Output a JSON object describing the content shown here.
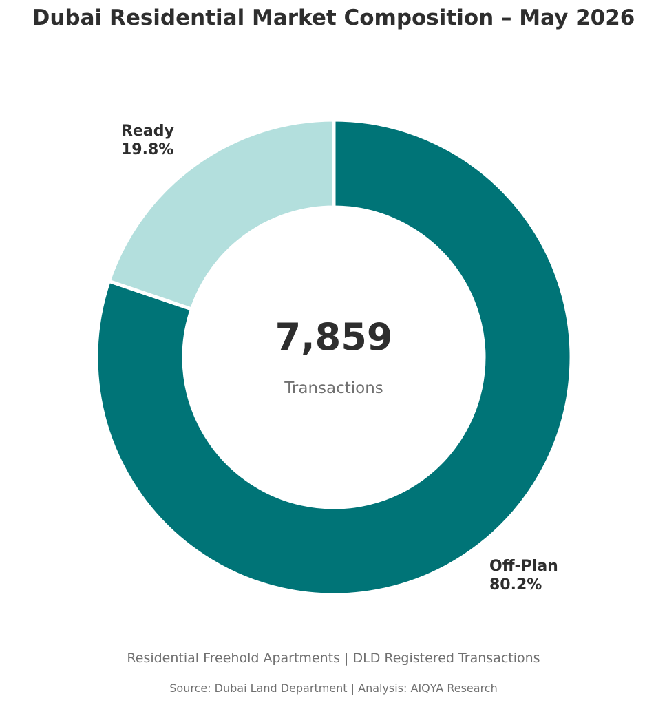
{
  "chart_data": {
    "type": "pie",
    "title": "Dubai Residential Market Composition – May 2026",
    "center_value": "7,859",
    "center_label": "Transactions",
    "slices": [
      {
        "name": "Off-Plan",
        "value": 80.2,
        "label": "80.2%",
        "color": "#007477"
      },
      {
        "name": "Ready",
        "value": 19.8,
        "label": "19.8%",
        "color": "#b3dfdd"
      }
    ],
    "subtitle": "Residential Freehold Apartments | DLD Registered Transactions",
    "source": "Source: Dubai Land Department | Analysis: AIQYA Research"
  }
}
